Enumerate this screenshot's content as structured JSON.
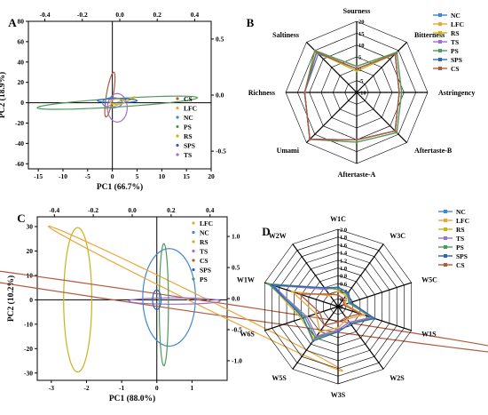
{
  "colors": {
    "NC": "#3f86d6",
    "LFC": "#e8a53a",
    "RS": "#c7b31a",
    "TS": "#9b6fd3",
    "PS": "#4e9a58",
    "SPS": "#2f62b8",
    "CS": "#b0593f"
  },
  "chart_data": [
    {
      "type": "scatter",
      "panel_label": "A",
      "xlabel": "PC1 (66.7%)",
      "ylabel": "PC2 (18.9%)",
      "xlim": [
        -17,
        20
      ],
      "ylim": [
        -65,
        80
      ],
      "x_ticks": [
        "-15",
        "-10",
        "-5",
        "0",
        "5",
        "10",
        "15",
        "20"
      ],
      "y_ticks": [
        "-60",
        "-40",
        "-20",
        "0",
        "20",
        "40",
        "60",
        "80"
      ],
      "top_ticks": [
        "-0.4",
        "-0.2",
        "0.0",
        "0.2",
        "0.4"
      ],
      "right_ticks": [
        "0.5",
        "0.0",
        "-0.5"
      ],
      "legend": [
        "CS",
        "LFC",
        "NC",
        "PS",
        "RS",
        "SPS",
        "TS"
      ],
      "ellipses": [
        {
          "group": "PS",
          "cx": 1,
          "cy": 0,
          "rx": 17,
          "ry": 4,
          "angle": -18
        },
        {
          "group": "RS",
          "cx": 1.5,
          "cy": 0,
          "rx": 6.5,
          "ry": 0.6,
          "angle": -62
        },
        {
          "group": "CS",
          "cx": -0.5,
          "cy": 8,
          "rx": 22,
          "ry": 0.7,
          "angle": -88
        },
        {
          "group": "TS",
          "cx": 1,
          "cy": -5,
          "rx": 2,
          "ry": 14,
          "angle": 0
        },
        {
          "group": "SPS",
          "cx": 1,
          "cy": 2,
          "rx": 4,
          "ry": 2,
          "angle": 0
        },
        {
          "group": "NC",
          "cx": 0,
          "cy": 0,
          "rx": 2,
          "ry": 5,
          "angle": 0
        },
        {
          "group": "LFC",
          "cx": 1,
          "cy": 1,
          "rx": 1.5,
          "ry": 2.5,
          "angle": 0
        }
      ]
    },
    {
      "type": "radar",
      "panel_label": "B",
      "axes": [
        "Sourness",
        "Bitterness",
        "Astringency",
        "Aftertaste-B",
        "Aftertaste-A",
        "Umami",
        "Richness",
        "Saltiness"
      ],
      "rlim": [
        -10,
        20
      ],
      "r_ticks": [
        "20",
        "15",
        "10",
        "5",
        "0",
        "-5",
        "-10"
      ],
      "series": [
        {
          "name": "NC",
          "values": [
            0,
            13,
            8,
            13,
            10,
            18,
            12,
            13
          ]
        },
        {
          "name": "LFC",
          "values": [
            1,
            14,
            9,
            14,
            11,
            18,
            12,
            15
          ]
        },
        {
          "name": "RS",
          "values": [
            -1,
            13,
            8,
            13,
            10,
            18,
            12,
            14
          ]
        },
        {
          "name": "TS",
          "values": [
            0,
            13,
            8,
            13,
            10,
            18,
            12,
            14
          ]
        },
        {
          "name": "PS",
          "values": [
            1,
            14,
            9,
            14,
            11,
            18,
            12,
            15
          ]
        },
        {
          "name": "SPS",
          "values": [
            0,
            13,
            8,
            13,
            10,
            18,
            12,
            14
          ]
        },
        {
          "name": "CS",
          "values": [
            0,
            13,
            8,
            13,
            10,
            18,
            12,
            14
          ]
        }
      ]
    },
    {
      "type": "scatter",
      "panel_label": "C",
      "xlabel": "PC1 (88.0%)",
      "ylabel": "PC2 (10.2%)",
      "xlim": [
        -3.4,
        2
      ],
      "ylim": [
        -33,
        34
      ],
      "x_ticks": [
        "-3",
        "-2",
        "-1",
        "0",
        "1"
      ],
      "y_ticks": [
        "-30",
        "-20",
        "-10",
        "0",
        "10",
        "20",
        "30"
      ],
      "top_ticks": [
        "-0.4",
        "-0.2",
        "0.0",
        "0.2",
        "0.4"
      ],
      "right_ticks": [
        "1.0",
        "0.5",
        "0.0",
        "-0.5",
        "-1.0"
      ],
      "legend": [
        "LFC",
        "NC",
        "RS",
        "TS",
        "CS",
        "SPS",
        "PS"
      ],
      "ellipses": [
        {
          "group": "RS",
          "cx": -2.25,
          "cy": 0,
          "rx": 29.6,
          "ry": 0.4,
          "angle": -90
        },
        {
          "group": "CS",
          "cx": 0.2,
          "cy": -0.5,
          "rx": 1.1,
          "ry": 25,
          "angle": -25
        },
        {
          "group": "NC",
          "cx": 0.35,
          "cy": 1,
          "rx": 0.75,
          "ry": 20,
          "angle": 0
        },
        {
          "group": "LFC",
          "cx": 1.1,
          "cy": 0.5,
          "rx": 0.28,
          "ry": 30,
          "angle": -8
        },
        {
          "group": "PS",
          "cx": 0.2,
          "cy": -2,
          "rx": 0.13,
          "ry": 25,
          "angle": 0
        },
        {
          "group": "TS",
          "cx": 0.5,
          "cy": -0.5,
          "rx": 1.3,
          "ry": 1.3,
          "angle": -15
        },
        {
          "group": "SPS",
          "cx": 0,
          "cy": 0,
          "rx": 0.12,
          "ry": 4,
          "angle": 0
        }
      ]
    },
    {
      "type": "radar",
      "panel_label": "D",
      "axes": [
        "W1C",
        "W3C",
        "W5C",
        "W1S",
        "W2S",
        "W3S",
        "W5S",
        "W6S",
        "W1W",
        "W2W"
      ],
      "rlim": [
        0,
        2
      ],
      "r_ticks": [
        "2.0",
        "1.8",
        "1.6",
        "1.4",
        "1.2",
        "1.0",
        "0.8",
        "0.6",
        "0.4",
        "0.2",
        "0"
      ],
      "series": [
        {
          "name": "NC",
          "values": [
            0.45,
            0.4,
            0.3,
            0.95,
            0.5,
            0.6,
            1.0,
            0.9,
            1.75,
            0.6
          ]
        },
        {
          "name": "LFC",
          "values": [
            0.4,
            0.35,
            0.2,
            0.7,
            0.4,
            0.55,
            0.8,
            0.6,
            1.25,
            0.35
          ]
        },
        {
          "name": "RS",
          "values": [
            0.45,
            0.4,
            0.3,
            0.95,
            0.5,
            0.6,
            1.05,
            1.0,
            1.85,
            0.6
          ]
        },
        {
          "name": "TS",
          "values": [
            0.5,
            0.45,
            0.3,
            0.9,
            0.5,
            0.6,
            0.95,
            0.85,
            1.8,
            0.55
          ]
        },
        {
          "name": "PS",
          "values": [
            0.45,
            0.4,
            0.3,
            0.95,
            0.55,
            0.65,
            1.0,
            0.9,
            1.9,
            0.6
          ]
        },
        {
          "name": "SPS",
          "values": [
            0.5,
            0.45,
            0.35,
            1.0,
            0.55,
            0.65,
            1.1,
            0.95,
            1.8,
            0.6
          ]
        },
        {
          "name": "CS",
          "values": [
            0.3,
            0.25,
            0.15,
            0.6,
            0.35,
            0.4,
            0.6,
            0.5,
            1.05,
            0.4
          ]
        }
      ]
    }
  ]
}
